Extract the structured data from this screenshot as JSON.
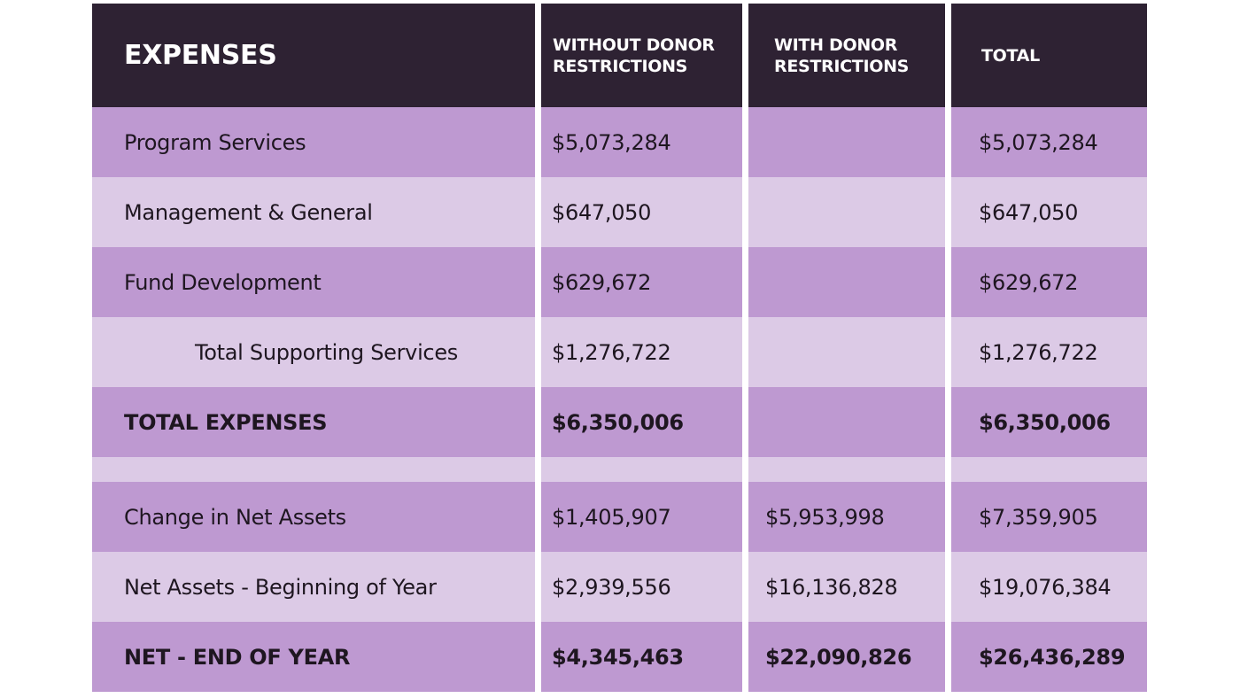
{
  "header": {
    "title": "EXPENSES",
    "col_without": "WITHOUT DONOR RESTRICTIONS",
    "col_with": "WITH DONOR RESTRICTIONS",
    "col_total": "TOTAL"
  },
  "rows": [
    {
      "label": "Program Services",
      "without": "$5,073,284",
      "with": "",
      "total": "$5,073,284",
      "style": "normal"
    },
    {
      "label": "Management & General",
      "without": "$647,050",
      "with": "",
      "total": "$647,050",
      "style": "normal"
    },
    {
      "label": "Fund Development",
      "without": "$629,672",
      "with": "",
      "total": "$629,672",
      "style": "normal"
    },
    {
      "label": "Total Supporting Services",
      "without": "$1,276,722",
      "with": "",
      "total": "$1,276,722",
      "style": "indented"
    },
    {
      "label": "TOTAL EXPENSES",
      "without": "$6,350,006",
      "with": "",
      "total": "$6,350,006",
      "style": "bold"
    },
    {
      "label": "Change in Net Assets",
      "without": "$1,405,907",
      "with": "$5,953,998",
      "total": "$7,359,905",
      "style": "normal"
    },
    {
      "label": "Net Assets - Beginning of Year",
      "without": "$2,939,556",
      "with": "$16,136,828",
      "total": "$19,076,384",
      "style": "normal"
    },
    {
      "label": "NET - END OF YEAR",
      "without": "$4,345,463",
      "with": "$22,090,826",
      "total": "$26,436,289",
      "style": "bold"
    }
  ],
  "colors": {
    "header": "#2e2233",
    "row_dark": "#be99d1",
    "row_light": "#dccae6"
  }
}
